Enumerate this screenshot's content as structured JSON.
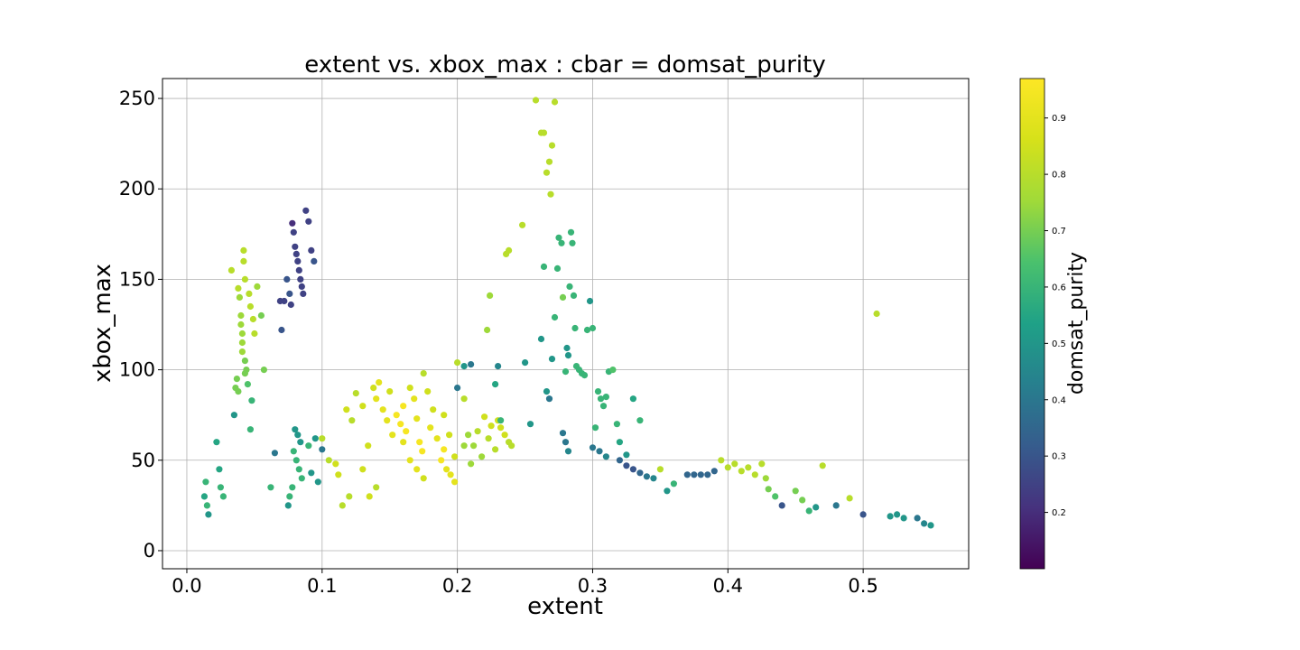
{
  "chart_data": {
    "type": "scatter",
    "title": "extent vs. xbox_max : cbar = domsat_purity",
    "xlabel": "extent",
    "ylabel": "xbox_max",
    "xlim": [
      -0.018,
      0.578
    ],
    "ylim": [
      -10,
      261
    ],
    "xticks": [
      0.0,
      0.1,
      0.2,
      0.3,
      0.4,
      0.5
    ],
    "xtick_labels": [
      "0.0",
      "0.1",
      "0.2",
      "0.3",
      "0.4",
      "0.5"
    ],
    "yticks": [
      0,
      50,
      100,
      150,
      200,
      250
    ],
    "ytick_labels": [
      "0",
      "50",
      "100",
      "150",
      "200",
      "250"
    ],
    "grid": true,
    "colormap": "viridis",
    "colorbar": {
      "label": "domsat_purity",
      "range": [
        0.1,
        0.97
      ],
      "ticks": [
        0.2,
        0.3,
        0.4,
        0.5,
        0.6,
        0.7,
        0.8,
        0.9
      ],
      "tick_labels": [
        "0.2",
        "0.3",
        "0.4",
        "0.5",
        "0.6",
        "0.7",
        "0.8",
        "0.9"
      ]
    },
    "points": [
      [
        0.013,
        30,
        0.55
      ],
      [
        0.015,
        25,
        0.6
      ],
      [
        0.014,
        38,
        0.6
      ],
      [
        0.016,
        20,
        0.5
      ],
      [
        0.022,
        60,
        0.55
      ],
      [
        0.024,
        45,
        0.55
      ],
      [
        0.025,
        35,
        0.6
      ],
      [
        0.027,
        30,
        0.6
      ],
      [
        0.033,
        155,
        0.8
      ],
      [
        0.035,
        75,
        0.5
      ],
      [
        0.037,
        95,
        0.7
      ],
      [
        0.038,
        145,
        0.8
      ],
      [
        0.039,
        140,
        0.75
      ],
      [
        0.04,
        130,
        0.75
      ],
      [
        0.041,
        120,
        0.75
      ],
      [
        0.041,
        110,
        0.75
      ],
      [
        0.042,
        166,
        0.8
      ],
      [
        0.042,
        160,
        0.8
      ],
      [
        0.043,
        150,
        0.8
      ],
      [
        0.043,
        105,
        0.7
      ],
      [
        0.044,
        100,
        0.7
      ],
      [
        0.045,
        92,
        0.65
      ],
      [
        0.046,
        142,
        0.8
      ],
      [
        0.047,
        135,
        0.8
      ],
      [
        0.048,
        83,
        0.6
      ],
      [
        0.049,
        128,
        0.8
      ],
      [
        0.05,
        120,
        0.8
      ],
      [
        0.052,
        146,
        0.75
      ],
      [
        0.055,
        130,
        0.7
      ],
      [
        0.057,
        100,
        0.7
      ],
      [
        0.047,
        67,
        0.6
      ],
      [
        0.038,
        88,
        0.7
      ],
      [
        0.041,
        115,
        0.75
      ],
      [
        0.043,
        98,
        0.7
      ],
      [
        0.04,
        125,
        0.75
      ],
      [
        0.036,
        90,
        0.7
      ],
      [
        0.062,
        35,
        0.6
      ],
      [
        0.065,
        54,
        0.4
      ],
      [
        0.07,
        122,
        0.3
      ],
      [
        0.069,
        138,
        0.25
      ],
      [
        0.072,
        138,
        0.25
      ],
      [
        0.074,
        150,
        0.3
      ],
      [
        0.076,
        142,
        0.3
      ],
      [
        0.077,
        136,
        0.25
      ],
      [
        0.078,
        181,
        0.2
      ],
      [
        0.079,
        176,
        0.25
      ],
      [
        0.08,
        168,
        0.25
      ],
      [
        0.081,
        164,
        0.25
      ],
      [
        0.082,
        160,
        0.25
      ],
      [
        0.083,
        155,
        0.25
      ],
      [
        0.084,
        150,
        0.25
      ],
      [
        0.085,
        146,
        0.25
      ],
      [
        0.086,
        142,
        0.25
      ],
      [
        0.088,
        188,
        0.25
      ],
      [
        0.09,
        182,
        0.25
      ],
      [
        0.092,
        166,
        0.25
      ],
      [
        0.094,
        160,
        0.3
      ],
      [
        0.08,
        67,
        0.5
      ],
      [
        0.082,
        64,
        0.5
      ],
      [
        0.084,
        60,
        0.5
      ],
      [
        0.079,
        55,
        0.6
      ],
      [
        0.081,
        50,
        0.6
      ],
      [
        0.083,
        45,
        0.6
      ],
      [
        0.085,
        40,
        0.6
      ],
      [
        0.078,
        35,
        0.6
      ],
      [
        0.076,
        30,
        0.6
      ],
      [
        0.075,
        25,
        0.5
      ],
      [
        0.09,
        58,
        0.6
      ],
      [
        0.095,
        62,
        0.5
      ],
      [
        0.1,
        56,
        0.4
      ],
      [
        0.092,
        43,
        0.5
      ],
      [
        0.097,
        38,
        0.5
      ],
      [
        0.1,
        62,
        0.8
      ],
      [
        0.105,
        50,
        0.8
      ],
      [
        0.11,
        48,
        0.85
      ],
      [
        0.112,
        42,
        0.85
      ],
      [
        0.118,
        78,
        0.85
      ],
      [
        0.122,
        72,
        0.8
      ],
      [
        0.125,
        87,
        0.8
      ],
      [
        0.13,
        80,
        0.85
      ],
      [
        0.134,
        58,
        0.85
      ],
      [
        0.138,
        90,
        0.85
      ],
      [
        0.14,
        84,
        0.9
      ],
      [
        0.142,
        93,
        0.9
      ],
      [
        0.145,
        78,
        0.9
      ],
      [
        0.148,
        72,
        0.9
      ],
      [
        0.15,
        88,
        0.85
      ],
      [
        0.152,
        64,
        0.9
      ],
      [
        0.155,
        75,
        0.95
      ],
      [
        0.158,
        70,
        0.95
      ],
      [
        0.16,
        80,
        0.95
      ],
      [
        0.162,
        66,
        0.95
      ],
      [
        0.165,
        90,
        0.85
      ],
      [
        0.168,
        84,
        0.9
      ],
      [
        0.17,
        73,
        0.9
      ],
      [
        0.172,
        60,
        0.95
      ],
      [
        0.174,
        55,
        0.95
      ],
      [
        0.175,
        98,
        0.8
      ],
      [
        0.178,
        88,
        0.85
      ],
      [
        0.18,
        68,
        0.9
      ],
      [
        0.182,
        78,
        0.85
      ],
      [
        0.185,
        62,
        0.9
      ],
      [
        0.188,
        50,
        0.95
      ],
      [
        0.19,
        56,
        0.95
      ],
      [
        0.192,
        45,
        0.9
      ],
      [
        0.195,
        42,
        0.9
      ],
      [
        0.198,
        38,
        0.9
      ],
      [
        0.19,
        75,
        0.85
      ],
      [
        0.194,
        64,
        0.85
      ],
      [
        0.198,
        52,
        0.85
      ],
      [
        0.16,
        60,
        0.9
      ],
      [
        0.165,
        50,
        0.9
      ],
      [
        0.17,
        45,
        0.9
      ],
      [
        0.175,
        40,
        0.85
      ],
      [
        0.13,
        45,
        0.85
      ],
      [
        0.135,
        30,
        0.85
      ],
      [
        0.12,
        30,
        0.8
      ],
      [
        0.115,
        25,
        0.8
      ],
      [
        0.14,
        35,
        0.8
      ],
      [
        0.2,
        104,
        0.8
      ],
      [
        0.205,
        84,
        0.8
      ],
      [
        0.208,
        64,
        0.75
      ],
      [
        0.212,
        58,
        0.75
      ],
      [
        0.215,
        66,
        0.8
      ],
      [
        0.218,
        52,
        0.75
      ],
      [
        0.22,
        74,
        0.85
      ],
      [
        0.223,
        62,
        0.8
      ],
      [
        0.225,
        69,
        0.85
      ],
      [
        0.228,
        56,
        0.8
      ],
      [
        0.23,
        72,
        0.85
      ],
      [
        0.232,
        68,
        0.85
      ],
      [
        0.235,
        64,
        0.85
      ],
      [
        0.238,
        60,
        0.8
      ],
      [
        0.24,
        58,
        0.8
      ],
      [
        0.205,
        58,
        0.75
      ],
      [
        0.21,
        48,
        0.75
      ],
      [
        0.2,
        90,
        0.4
      ],
      [
        0.205,
        102,
        0.5
      ],
      [
        0.21,
        103,
        0.4
      ],
      [
        0.222,
        122,
        0.75
      ],
      [
        0.224,
        141,
        0.75
      ],
      [
        0.228,
        92,
        0.55
      ],
      [
        0.23,
        102,
        0.45
      ],
      [
        0.232,
        72,
        0.6
      ],
      [
        0.236,
        164,
        0.8
      ],
      [
        0.238,
        166,
        0.8
      ],
      [
        0.248,
        180,
        0.8
      ],
      [
        0.25,
        104,
        0.5
      ],
      [
        0.254,
        70,
        0.5
      ],
      [
        0.258,
        249,
        0.8
      ],
      [
        0.262,
        231,
        0.8
      ],
      [
        0.264,
        231,
        0.8
      ],
      [
        0.266,
        209,
        0.8
      ],
      [
        0.268,
        215,
        0.8
      ],
      [
        0.269,
        197,
        0.8
      ],
      [
        0.27,
        224,
        0.8
      ],
      [
        0.272,
        248,
        0.8
      ],
      [
        0.262,
        117,
        0.5
      ],
      [
        0.264,
        157,
        0.6
      ],
      [
        0.266,
        88,
        0.5
      ],
      [
        0.268,
        84,
        0.4
      ],
      [
        0.27,
        106,
        0.5
      ],
      [
        0.272,
        129,
        0.6
      ],
      [
        0.274,
        156,
        0.6
      ],
      [
        0.275,
        173,
        0.6
      ],
      [
        0.277,
        170,
        0.6
      ],
      [
        0.278,
        140,
        0.7
      ],
      [
        0.28,
        99,
        0.6
      ],
      [
        0.281,
        112,
        0.5
      ],
      [
        0.282,
        108,
        0.5
      ],
      [
        0.283,
        146,
        0.6
      ],
      [
        0.284,
        176,
        0.6
      ],
      [
        0.285,
        170,
        0.6
      ],
      [
        0.286,
        141,
        0.6
      ],
      [
        0.287,
        123,
        0.6
      ],
      [
        0.288,
        102,
        0.6
      ],
      [
        0.29,
        100,
        0.6
      ],
      [
        0.292,
        98,
        0.6
      ],
      [
        0.294,
        97,
        0.6
      ],
      [
        0.296,
        122,
        0.6
      ],
      [
        0.298,
        138,
        0.5
      ],
      [
        0.3,
        123,
        0.6
      ],
      [
        0.302,
        68,
        0.6
      ],
      [
        0.304,
        88,
        0.6
      ],
      [
        0.306,
        84,
        0.6
      ],
      [
        0.308,
        80,
        0.6
      ],
      [
        0.31,
        85,
        0.6
      ],
      [
        0.312,
        99,
        0.6
      ],
      [
        0.315,
        100,
        0.65
      ],
      [
        0.318,
        70,
        0.6
      ],
      [
        0.32,
        60,
        0.55
      ],
      [
        0.325,
        53,
        0.5
      ],
      [
        0.33,
        84,
        0.55
      ],
      [
        0.335,
        72,
        0.6
      ],
      [
        0.278,
        65,
        0.4
      ],
      [
        0.28,
        60,
        0.4
      ],
      [
        0.282,
        55,
        0.45
      ],
      [
        0.3,
        57,
        0.4
      ],
      [
        0.305,
        55,
        0.4
      ],
      [
        0.31,
        52,
        0.45
      ],
      [
        0.32,
        50,
        0.35
      ],
      [
        0.325,
        47,
        0.3
      ],
      [
        0.33,
        45,
        0.3
      ],
      [
        0.335,
        43,
        0.35
      ],
      [
        0.34,
        41,
        0.4
      ],
      [
        0.345,
        40,
        0.45
      ],
      [
        0.35,
        45,
        0.8
      ],
      [
        0.355,
        33,
        0.5
      ],
      [
        0.36,
        37,
        0.6
      ],
      [
        0.37,
        42,
        0.35
      ],
      [
        0.375,
        42,
        0.35
      ],
      [
        0.38,
        42,
        0.35
      ],
      [
        0.385,
        42,
        0.35
      ],
      [
        0.39,
        44,
        0.35
      ],
      [
        0.395,
        50,
        0.8
      ],
      [
        0.4,
        46,
        0.8
      ],
      [
        0.405,
        48,
        0.8
      ],
      [
        0.41,
        44,
        0.8
      ],
      [
        0.415,
        46,
        0.8
      ],
      [
        0.42,
        42,
        0.8
      ],
      [
        0.425,
        48,
        0.8
      ],
      [
        0.428,
        40,
        0.75
      ],
      [
        0.43,
        34,
        0.7
      ],
      [
        0.435,
        30,
        0.65
      ],
      [
        0.44,
        25,
        0.3
      ],
      [
        0.45,
        33,
        0.7
      ],
      [
        0.455,
        28,
        0.7
      ],
      [
        0.46,
        22,
        0.6
      ],
      [
        0.465,
        24,
        0.5
      ],
      [
        0.47,
        47,
        0.8
      ],
      [
        0.48,
        25,
        0.4
      ],
      [
        0.49,
        29,
        0.8
      ],
      [
        0.5,
        20,
        0.3
      ],
      [
        0.51,
        131,
        0.8
      ],
      [
        0.52,
        19,
        0.5
      ],
      [
        0.525,
        20,
        0.5
      ],
      [
        0.53,
        18,
        0.5
      ],
      [
        0.54,
        18,
        0.4
      ],
      [
        0.545,
        15,
        0.45
      ],
      [
        0.55,
        14,
        0.5
      ]
    ]
  }
}
